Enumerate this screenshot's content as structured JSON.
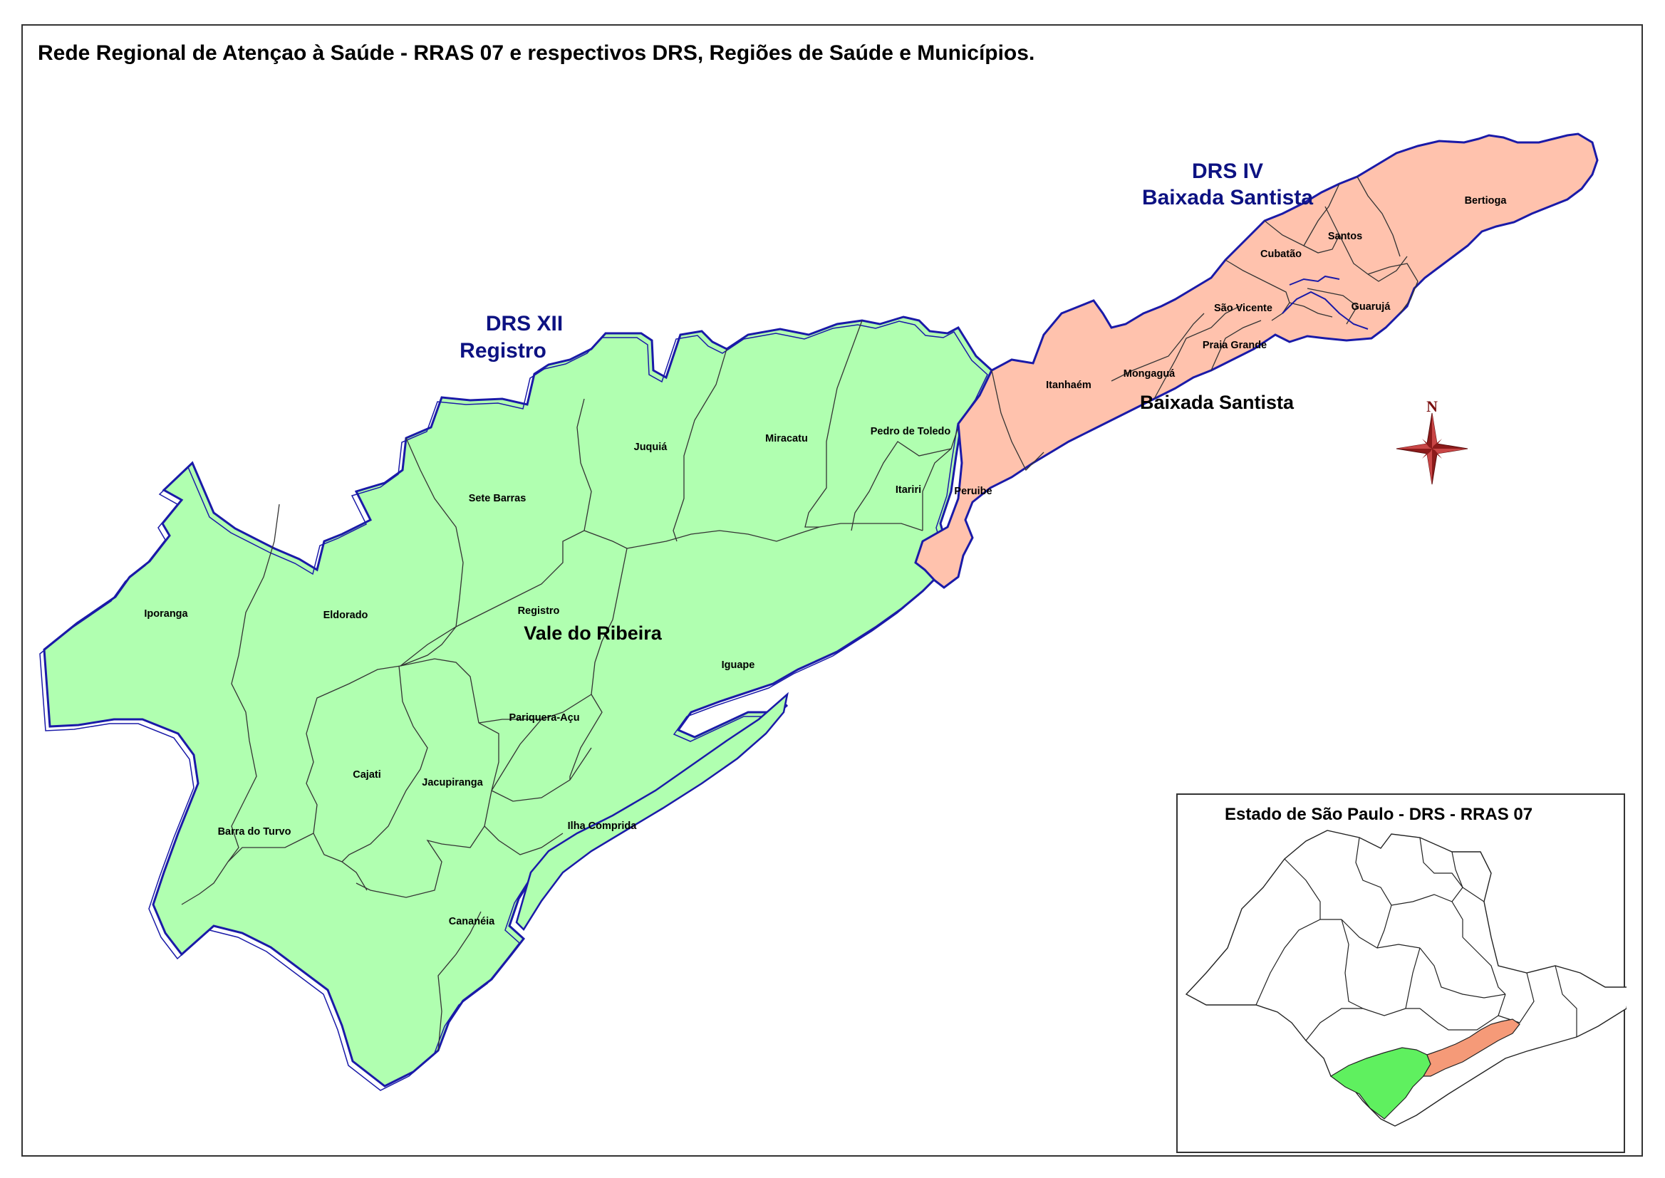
{
  "title": "Rede Regional de Atençao à Saúde - RRAS 07 e respectivos DRS, Regiões de Saúde e Municípios.",
  "drs": [
    {
      "line1": "DRS XII",
      "line2": "Registro"
    },
    {
      "line1": "DRS IV",
      "line2": "Baixada Santista"
    }
  ],
  "regions": {
    "vale": "Vale do Ribeira",
    "baixada": "Baixada Santista"
  },
  "municipalities": {
    "iporanga": "Iporanga",
    "eldorado": "Eldorado",
    "sete_barras": "Sete Barras",
    "juquia": "Juquiá",
    "miracatu": "Miracatu",
    "pedro_de_toledo": "Pedro de Toledo",
    "itariri": "Itariri",
    "registro": "Registro",
    "iguape": "Iguape",
    "pariquera_acu": "Pariquera-Açu",
    "cajati": "Cajati",
    "jacupiranga": "Jacupiranga",
    "barra_do_turvo": "Barra do Turvo",
    "ilha_comprida": "Ilha Comprida",
    "cananeia": "Cananéia",
    "peruibe": "Peruibe",
    "itanhaem": "Itanhaém",
    "mongagua": "Mongaguá",
    "praia_grande": "Praia Grande",
    "sao_vicente": "São Vicente",
    "cubatao": "Cubatão",
    "santos": "Santos",
    "guaruja": "Guarujá",
    "bertioga": "Bertioga"
  },
  "compass": {
    "north_label": "N"
  },
  "inset": {
    "title": "Estado de São Paulo - DRS - RRAS 07"
  },
  "colors": {
    "drs_xii_fill": "#b0ffb0",
    "drs_iv_fill": "#ffc2ad",
    "outline_blue": "#1a1aa8",
    "inset_green": "#5ff05f",
    "inset_salmon": "#f59a78",
    "compass_red": "#8b1a1a"
  }
}
